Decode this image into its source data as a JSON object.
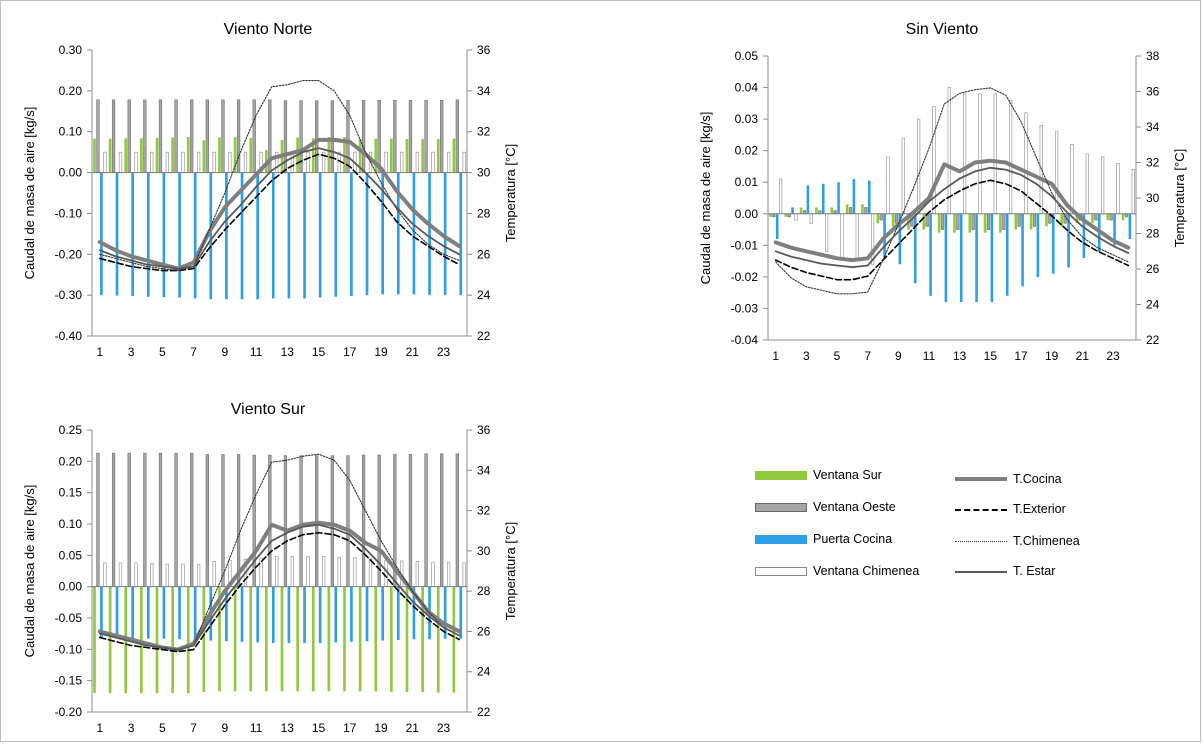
{
  "colors": {
    "ventana_sur": "#92c83e",
    "ventana_oeste": "#a5a5a5",
    "puerta_cocina": "#2e9fe6",
    "ventana_chimenea": "#ffffff",
    "t_cocina": "#7f7f7f",
    "t_exterior": "#000000",
    "t_chimenea": "#333333",
    "t_estar": "#595959"
  },
  "legend": {
    "ventana_sur": "Ventana Sur",
    "ventana_oeste": "Ventana Oeste",
    "puerta_cocina": "Puerta Cocina",
    "ventana_chimenea": "Ventana Chimenea",
    "t_cocina": "T.Cocina",
    "t_exterior": "T.Exterior",
    "t_chimenea": "T.Chimenea",
    "t_estar": "T. Estar"
  },
  "chart_data": [
    {
      "type": "bar",
      "title": "Viento Norte",
      "ylabel": "Caudal de masa de aire [kg/s]",
      "y2label": "Temperatura [°C]",
      "ylim": [
        -0.4,
        0.3
      ],
      "yticks": [
        "0.30",
        "0.20",
        "0.10",
        "0.00",
        "-0.10",
        "-0.20",
        "-0.30",
        "-0.40"
      ],
      "y2lim": [
        22,
        36
      ],
      "y2ticks": [
        "36",
        "34",
        "32",
        "30",
        "28",
        "26",
        "24",
        "22"
      ],
      "xticks": [
        "1",
        "3",
        "5",
        "7",
        "9",
        "11",
        "13",
        "15",
        "17",
        "19",
        "21",
        "23"
      ],
      "x": [
        1,
        2,
        3,
        4,
        5,
        6,
        7,
        8,
        9,
        10,
        11,
        12,
        13,
        14,
        15,
        16,
        17,
        18,
        19,
        20,
        21,
        22,
        23,
        24
      ],
      "series": [
        {
          "name": "Ventana Sur",
          "kind": "bar",
          "values": [
            0.083,
            0.083,
            0.084,
            0.084,
            0.085,
            0.086,
            0.087,
            0.079,
            0.086,
            0.087,
            0.085,
            0.055,
            0.08,
            0.086,
            0.084,
            0.087,
            0.087,
            0.082,
            0.083,
            0.083,
            0.082,
            0.082,
            0.082,
            0.083
          ]
        },
        {
          "name": "Ventana Oeste",
          "kind": "bar",
          "values": [
            0.178,
            0.178,
            0.178,
            0.178,
            0.178,
            0.178,
            0.178,
            0.178,
            0.178,
            0.178,
            0.178,
            0.178,
            0.176,
            0.176,
            0.176,
            0.176,
            0.177,
            0.177,
            0.177,
            0.177,
            0.177,
            0.177,
            0.177,
            0.178
          ]
        },
        {
          "name": "Puerta Cocina",
          "kind": "bar",
          "values": [
            -0.3,
            -0.301,
            -0.302,
            -0.304,
            -0.305,
            -0.306,
            -0.308,
            -0.31,
            -0.31,
            -0.31,
            -0.31,
            -0.308,
            -0.308,
            -0.308,
            -0.306,
            -0.304,
            -0.302,
            -0.3,
            -0.298,
            -0.298,
            -0.298,
            -0.3,
            -0.3,
            -0.3
          ]
        },
        {
          "name": "Ventana Chimenea",
          "kind": "bar",
          "values": [
            0.05,
            0.05,
            0.05,
            0.05,
            0.05,
            0.05,
            0.05,
            0.05,
            0.05,
            0.05,
            0.05,
            0.05,
            0.05,
            0.05,
            0.05,
            0.05,
            0.05,
            0.05,
            0.05,
            0.05,
            0.05,
            0.05,
            0.05,
            0.05
          ]
        },
        {
          "name": "T.Cocina",
          "kind": "line",
          "values": [
            26.6,
            26.2,
            25.9,
            25.7,
            25.5,
            25.3,
            25.6,
            27.1,
            28.3,
            29.1,
            29.9,
            30.7,
            30.9,
            31.1,
            31.6,
            31.6,
            31.5,
            30.9,
            30.2,
            29.1,
            28.2,
            27.5,
            26.9,
            26.4
          ]
        },
        {
          "name": "T.Exterior",
          "kind": "line",
          "values": [
            25.8,
            25.6,
            25.4,
            25.3,
            25.2,
            25.2,
            25.3,
            26.3,
            27.2,
            28.0,
            28.8,
            29.6,
            30.2,
            30.6,
            30.9,
            30.7,
            30.3,
            29.5,
            28.6,
            27.6,
            26.9,
            26.4,
            25.9,
            25.5
          ]
        },
        {
          "name": "T.Chimenea",
          "kind": "line",
          "values": [
            26.0,
            25.8,
            25.6,
            25.4,
            25.3,
            25.2,
            25.4,
            27.2,
            29.0,
            31.0,
            32.8,
            34.2,
            34.3,
            34.5,
            34.5,
            34.0,
            32.8,
            31.0,
            29.5,
            28.2,
            27.2,
            26.5,
            26.0,
            25.7
          ]
        },
        {
          "name": "T. Estar",
          "kind": "line",
          "values": [
            26.2,
            25.9,
            25.7,
            25.5,
            25.4,
            25.3,
            25.4,
            26.6,
            27.6,
            28.4,
            29.3,
            30.1,
            30.6,
            31.0,
            31.2,
            31.0,
            30.7,
            30.0,
            29.2,
            28.3,
            27.5,
            26.9,
            26.4,
            26.0
          ]
        }
      ]
    },
    {
      "type": "bar",
      "title": "Sin Viento",
      "ylabel": "Caudal de masa de aire [kg/s]",
      "y2label": "Temperatura [°C]",
      "ylim": [
        -0.04,
        0.05
      ],
      "yticks": [
        "0.05",
        "0.04",
        "0.03",
        "0.02",
        "0.01",
        "0.00",
        "-0.01",
        "-0.02",
        "-0.03",
        "-0.04"
      ],
      "y2lim": [
        22,
        38
      ],
      "y2ticks": [
        "38",
        "36",
        "34",
        "32",
        "30",
        "28",
        "26",
        "24",
        "22"
      ],
      "xticks": [
        "1",
        "3",
        "5",
        "7",
        "9",
        "11",
        "13",
        "15",
        "17",
        "19",
        "21",
        "23"
      ],
      "x": [
        1,
        2,
        3,
        4,
        5,
        6,
        7,
        8,
        9,
        10,
        11,
        12,
        13,
        14,
        15,
        16,
        17,
        18,
        19,
        20,
        21,
        22,
        23,
        24
      ],
      "series": [
        {
          "name": "Ventana Sur",
          "kind": "bar",
          "values": [
            -0.001,
            -0.001,
            0.002,
            0.002,
            0.002,
            0.003,
            0.003,
            -0.003,
            -0.004,
            -0.005,
            -0.005,
            -0.006,
            -0.006,
            -0.006,
            -0.006,
            -0.006,
            -0.005,
            -0.005,
            -0.004,
            -0.004,
            -0.003,
            -0.003,
            -0.002,
            -0.002
          ]
        },
        {
          "name": "Ventana Oeste",
          "kind": "bar",
          "values": [
            -0.001,
            -0.001,
            0.001,
            0.001,
            0.001,
            0.002,
            0.002,
            -0.002,
            -0.003,
            -0.004,
            -0.004,
            -0.005,
            -0.005,
            -0.005,
            -0.005,
            -0.005,
            -0.004,
            -0.004,
            -0.003,
            -0.003,
            -0.002,
            -0.002,
            -0.002,
            -0.001
          ]
        },
        {
          "name": "Puerta Cocina",
          "kind": "bar",
          "values": [
            -0.008,
            0.002,
            0.009,
            0.0095,
            0.01,
            0.011,
            0.0105,
            -0.014,
            -0.016,
            -0.022,
            -0.026,
            -0.028,
            -0.028,
            -0.028,
            -0.028,
            -0.026,
            -0.023,
            -0.02,
            -0.019,
            -0.017,
            -0.014,
            -0.012,
            -0.01,
            -0.008
          ]
        },
        {
          "name": "Ventana Chimenea",
          "kind": "bar",
          "values": [
            0.011,
            -0.002,
            -0.003,
            -0.012,
            -0.014,
            -0.015,
            -0.016,
            0.018,
            0.024,
            0.03,
            0.034,
            0.04,
            0.038,
            0.038,
            0.038,
            0.036,
            0.032,
            0.028,
            0.026,
            0.022,
            0.019,
            0.018,
            0.016,
            0.014
          ]
        },
        {
          "name": "T.Cocina",
          "kind": "line",
          "values": [
            27.5,
            27.2,
            27.0,
            26.8,
            26.6,
            26.5,
            26.6,
            27.7,
            28.5,
            29.2,
            30.0,
            31.9,
            31.5,
            32.0,
            32.1,
            32.0,
            31.6,
            31.2,
            30.8,
            29.6,
            28.8,
            28.2,
            27.6,
            27.2
          ]
        },
        {
          "name": "T.Exterior",
          "kind": "line",
          "values": [
            26.5,
            26.1,
            25.8,
            25.6,
            25.4,
            25.4,
            25.6,
            26.5,
            27.4,
            28.3,
            29.2,
            29.9,
            30.4,
            30.8,
            31.0,
            30.8,
            30.4,
            29.7,
            29.0,
            28.2,
            27.5,
            27.0,
            26.6,
            26.2
          ]
        },
        {
          "name": "T.Chimenea",
          "kind": "line",
          "values": [
            26.4,
            25.5,
            25.0,
            24.8,
            24.6,
            24.6,
            24.7,
            26.5,
            28.5,
            30.6,
            32.8,
            35.3,
            35.9,
            36.1,
            36.2,
            35.8,
            34.3,
            32.3,
            30.3,
            28.8,
            27.8,
            27.2,
            26.8,
            26.4
          ]
        },
        {
          "name": "T. Estar",
          "kind": "line",
          "values": [
            27.0,
            26.7,
            26.5,
            26.3,
            26.2,
            26.1,
            26.2,
            27.2,
            28.1,
            28.9,
            29.8,
            30.5,
            31.1,
            31.5,
            31.7,
            31.6,
            31.3,
            30.8,
            30.1,
            29.2,
            28.4,
            27.8,
            27.3,
            26.9
          ]
        }
      ]
    },
    {
      "type": "bar",
      "title": "Viento Sur",
      "ylabel": "Caudal de masa de aire [kg/s]",
      "y2label": "Temperatura [°C]",
      "ylim": [
        -0.2,
        0.25
      ],
      "yticks": [
        "0.25",
        "0.20",
        "0.15",
        "0.10",
        "0.05",
        "0.00",
        "-0.05",
        "-0.10",
        "-0.15",
        "-0.20"
      ],
      "y2lim": [
        22,
        36
      ],
      "y2ticks": [
        "36",
        "34",
        "32",
        "30",
        "28",
        "26",
        "24",
        "22"
      ],
      "xticks": [
        "1",
        "3",
        "5",
        "7",
        "9",
        "11",
        "13",
        "15",
        "17",
        "19",
        "21",
        "23"
      ],
      "x": [
        1,
        2,
        3,
        4,
        5,
        6,
        7,
        8,
        9,
        10,
        11,
        12,
        13,
        14,
        15,
        16,
        17,
        18,
        19,
        20,
        21,
        22,
        23,
        24
      ],
      "series": [
        {
          "name": "Ventana Sur",
          "kind": "bar",
          "values": [
            -0.17,
            -0.17,
            -0.17,
            -0.17,
            -0.17,
            -0.17,
            -0.17,
            -0.168,
            -0.167,
            -0.167,
            -0.167,
            -0.167,
            -0.167,
            -0.167,
            -0.167,
            -0.167,
            -0.167,
            -0.167,
            -0.167,
            -0.168,
            -0.168,
            -0.168,
            -0.169,
            -0.169
          ]
        },
        {
          "name": "Ventana Oeste",
          "kind": "bar",
          "values": [
            0.213,
            0.213,
            0.213,
            0.213,
            0.213,
            0.213,
            0.213,
            0.211,
            0.211,
            0.211,
            0.21,
            0.21,
            0.209,
            0.209,
            0.209,
            0.209,
            0.209,
            0.21,
            0.21,
            0.211,
            0.211,
            0.212,
            0.212,
            0.212
          ]
        },
        {
          "name": "Puerta Cocina",
          "kind": "bar",
          "values": [
            -0.082,
            -0.082,
            -0.083,
            -0.083,
            -0.083,
            -0.084,
            -0.084,
            -0.086,
            -0.087,
            -0.088,
            -0.089,
            -0.09,
            -0.09,
            -0.09,
            -0.09,
            -0.089,
            -0.088,
            -0.087,
            -0.086,
            -0.085,
            -0.084,
            -0.084,
            -0.083,
            -0.083
          ]
        },
        {
          "name": "Ventana Chimenea",
          "kind": "bar",
          "values": [
            0.038,
            0.038,
            0.038,
            0.037,
            0.036,
            0.036,
            0.035,
            0.04,
            0.042,
            0.044,
            0.046,
            0.048,
            0.048,
            0.048,
            0.048,
            0.047,
            0.046,
            0.044,
            0.042,
            0.041,
            0.04,
            0.039,
            0.039,
            0.038
          ]
        },
        {
          "name": "T.Cocina",
          "kind": "line",
          "values": [
            26.0,
            25.8,
            25.6,
            25.4,
            25.2,
            25.1,
            25.4,
            26.8,
            28.0,
            29.0,
            30.0,
            31.3,
            31.0,
            31.3,
            31.4,
            31.3,
            31.0,
            30.4,
            30.0,
            29.0,
            28.0,
            27.0,
            26.4,
            26.0
          ]
        },
        {
          "name": "T.Exterior",
          "kind": "line",
          "values": [
            25.7,
            25.5,
            25.3,
            25.2,
            25.1,
            25.0,
            25.1,
            26.2,
            27.3,
            28.3,
            29.2,
            30.0,
            30.5,
            30.8,
            30.9,
            30.8,
            30.5,
            29.8,
            29.0,
            28.1,
            27.3,
            26.6,
            26.0,
            25.6
          ]
        },
        {
          "name": "T.Chimenea",
          "kind": "line",
          "values": [
            25.9,
            25.7,
            25.5,
            25.3,
            25.2,
            25.1,
            25.3,
            27.2,
            29.0,
            31.0,
            32.8,
            34.4,
            34.5,
            34.7,
            34.8,
            34.5,
            33.5,
            32.0,
            30.5,
            29.2,
            28.0,
            27.0,
            26.2,
            25.8
          ]
        },
        {
          "name": "T. Estar",
          "kind": "line",
          "values": [
            25.9,
            25.7,
            25.5,
            25.3,
            25.2,
            25.1,
            25.3,
            26.5,
            27.6,
            28.6,
            29.6,
            30.5,
            30.9,
            31.2,
            31.3,
            31.1,
            30.8,
            30.1,
            29.3,
            28.4,
            27.5,
            26.8,
            26.2,
            25.8
          ]
        }
      ]
    }
  ]
}
